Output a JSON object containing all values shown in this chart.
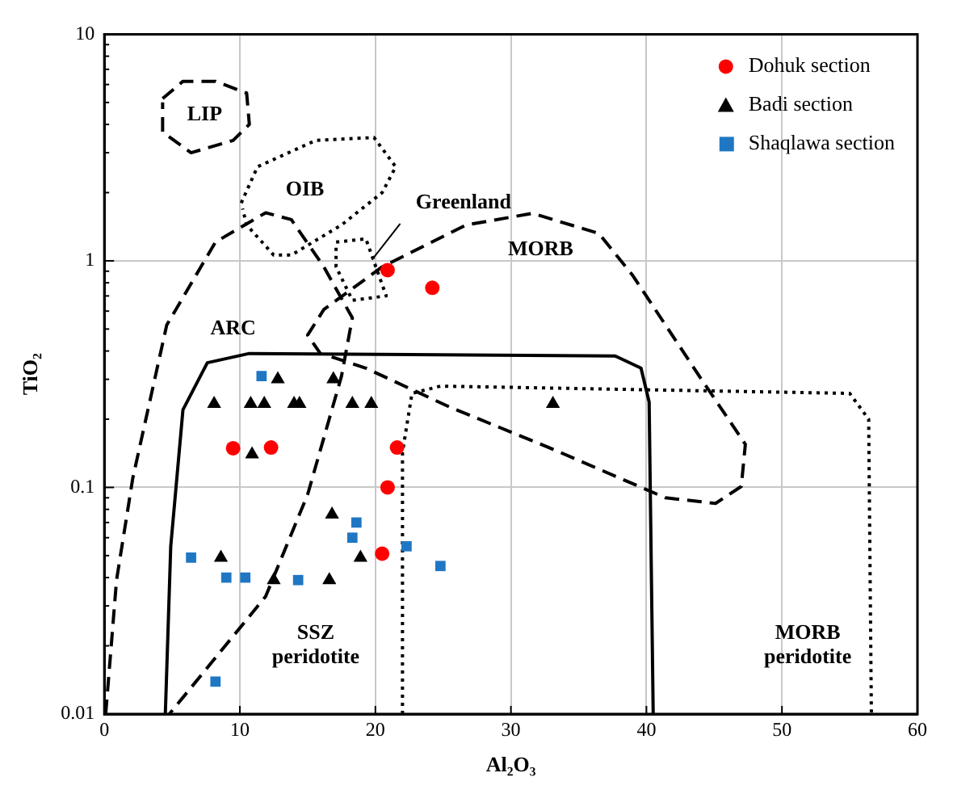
{
  "chart_data": {
    "type": "scatter",
    "xlabel": "Al₂O₃",
    "ylabel": "TiO₂",
    "xlim": [
      0,
      60
    ],
    "xticks": [
      0,
      10,
      20,
      30,
      40,
      50,
      60
    ],
    "ylim": [
      0.01,
      10
    ],
    "yticks": [
      0.01,
      {
        "value": 0.02,
        "label": null
      },
      {
        "value": 0.03,
        "label": null
      },
      {
        "value": 0.04,
        "label": null
      },
      {
        "value": 0.05,
        "label": null
      },
      {
        "value": 0.06,
        "label": null
      },
      {
        "value": 0.07,
        "label": null
      },
      {
        "value": 0.08,
        "label": null
      },
      {
        "value": 0.09,
        "label": null
      },
      0.1,
      {
        "value": 0.2,
        "label": null
      },
      {
        "value": 0.3,
        "label": null
      },
      {
        "value": 0.4,
        "label": null
      },
      {
        "value": 0.5,
        "label": null
      },
      {
        "value": 0.6,
        "label": null
      },
      {
        "value": 0.7,
        "label": null
      },
      {
        "value": 0.8,
        "label": null
      },
      {
        "value": 0.9,
        "label": null
      },
      1,
      {
        "value": 2,
        "label": null
      },
      {
        "value": 3,
        "label": null
      },
      {
        "value": 4,
        "label": null
      },
      {
        "value": 5,
        "label": null
      },
      {
        "value": 6,
        "label": null
      },
      {
        "value": 7,
        "label": null
      },
      {
        "value": 8,
        "label": null
      },
      {
        "value": 9,
        "label": null
      },
      10
    ],
    "log": "y",
    "grid": true,
    "legend": "top right",
    "series": [
      {
        "type": "line",
        "color": "#000000",
        "line_style": "dashed",
        "marker": "none",
        "x": [
          0.1,
          0.9,
          2.1,
          4.6,
          8.2,
          11.9,
          13.8,
          16.2,
          18.3,
          17.5,
          15.0,
          11.9,
          4.8
        ],
        "values": [
          0.01,
          0.039,
          0.11,
          0.52,
          1.21,
          1.63,
          1.52,
          0.94,
          0.56,
          0.31,
          0.093,
          0.033,
          0.01
        ]
      },
      {
        "type": "line",
        "color": "#000000",
        "line_style": "dashed",
        "marker": "none",
        "x": [
          16.0,
          15.0,
          16.2,
          20.5,
          26.7,
          31.6,
          36.5,
          39.0,
          43.9,
          47.3,
          47.0,
          45.1,
          41.4,
          32.8,
          25.5,
          19.3,
          16.6
        ],
        "values": [
          0.385,
          0.47,
          0.61,
          0.94,
          1.44,
          1.62,
          1.32,
          0.86,
          0.31,
          0.155,
          0.101,
          0.085,
          0.09,
          0.15,
          0.226,
          0.336,
          0.38
        ]
      },
      {
        "type": "line",
        "color": "#000000",
        "line_style": "solid",
        "marker": "none",
        "x": [
          4.5,
          4.9,
          5.8,
          7.6,
          10.7,
          37.7,
          39.6,
          40.2,
          40.5
        ],
        "values": [
          0.01,
          0.055,
          0.22,
          0.355,
          0.39,
          0.38,
          0.336,
          0.238,
          0.01
        ]
      },
      {
        "type": "line",
        "color": "#000000",
        "line_style": "dotted",
        "marker": "none",
        "x": [
          22.0,
          22.0,
          22.7,
          24.8,
          55.0,
          56.4,
          56.6
        ],
        "values": [
          0.01,
          0.143,
          0.26,
          0.28,
          0.26,
          0.2,
          0.01
        ]
      },
      {
        "type": "line",
        "color": "#000000",
        "line_style": "dashed",
        "marker": "none",
        "x": [
          4.3,
          5.8,
          8.2,
          10.5,
          10.7,
          9.5,
          6.4,
          4.3,
          4.3
        ],
        "values": [
          5.2,
          6.2,
          6.2,
          5.5,
          4.0,
          3.4,
          3.0,
          3.7,
          5.0
        ]
      },
      {
        "type": "line",
        "color": "#000000",
        "line_style": "dotted",
        "marker": "none",
        "x": [
          10.1,
          11.3,
          15.6,
          19.9,
          21.5,
          20.5,
          17.5,
          13.8,
          12.5,
          10.5,
          10.2
        ],
        "values": [
          1.8,
          2.6,
          3.4,
          3.5,
          2.6,
          2.0,
          1.44,
          1.06,
          1.06,
          1.44,
          1.7
        ]
      },
      {
        "type": "line",
        "color": "#000000",
        "line_style": "dotted",
        "marker": "none",
        "x": [
          17.1,
          19.3,
          20.8,
          18.3,
          17.1,
          17.1
        ],
        "values": [
          1.21,
          1.25,
          0.7,
          0.67,
          0.94,
          1.15
        ]
      },
      {
        "name": "Dohuk section",
        "color": "#ff0000",
        "marker": "circle",
        "x": [
          20.9,
          24.2,
          9.5,
          12.3,
          21.6,
          20.9,
          20.5
        ],
        "values": [
          0.91,
          0.76,
          0.149,
          0.15,
          0.15,
          0.1,
          0.051
        ]
      },
      {
        "name": "Badi section",
        "color": "#000000",
        "marker": "triangle",
        "x": [
          8.1,
          10.8,
          11.8,
          14.0,
          14.4,
          12.8,
          16.9,
          18.3,
          19.7,
          10.9,
          16.8,
          33.1,
          8.6,
          12.5,
          16.6,
          18.9
        ],
        "values": [
          0.234,
          0.234,
          0.234,
          0.234,
          0.234,
          0.3,
          0.3,
          0.234,
          0.234,
          0.14,
          0.076,
          0.234,
          0.049,
          0.039,
          0.039,
          0.049
        ]
      },
      {
        "name": "Shaqlawa section",
        "color": "#1f77c4",
        "marker": "square",
        "x": [
          11.6,
          6.4,
          9.0,
          10.4,
          14.3,
          18.6,
          18.3,
          22.3,
          24.8,
          8.2
        ],
        "values": [
          0.31,
          0.049,
          0.04,
          0.04,
          0.039,
          0.07,
          0.06,
          0.055,
          0.045,
          0.0139
        ]
      }
    ],
    "annotations": [
      "LIP",
      "OIB",
      "Greenland",
      "MORB",
      "ARC",
      "SSZ peridotite",
      "MORB peridotite"
    ]
  }
}
